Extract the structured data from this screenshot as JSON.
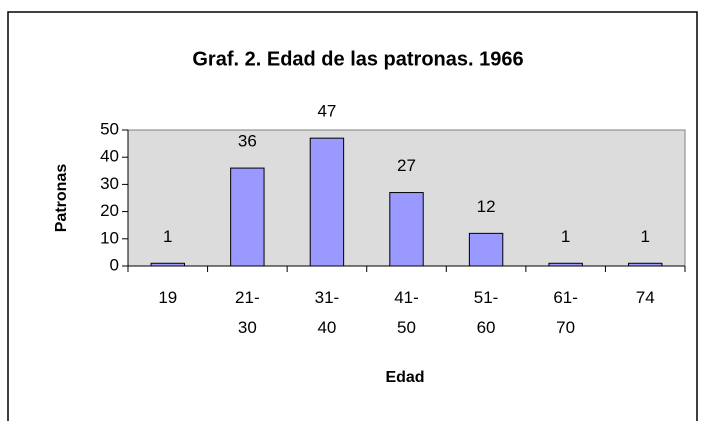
{
  "chart_data": {
    "type": "bar",
    "title": "Graf. 2. Edad de las patronas. 1966",
    "x_label": "Edad",
    "y_label": "Patronas",
    "categories": [
      "19",
      "21-30",
      "31-40",
      "41-50",
      "51-60",
      "61-70",
      "74"
    ],
    "values": [
      1,
      36,
      47,
      27,
      12,
      1,
      1
    ],
    "color": "#9999ff",
    "ylim": [
      0,
      50
    ],
    "yticks": [
      0,
      10,
      20,
      30,
      40,
      50
    ],
    "grid": false
  }
}
